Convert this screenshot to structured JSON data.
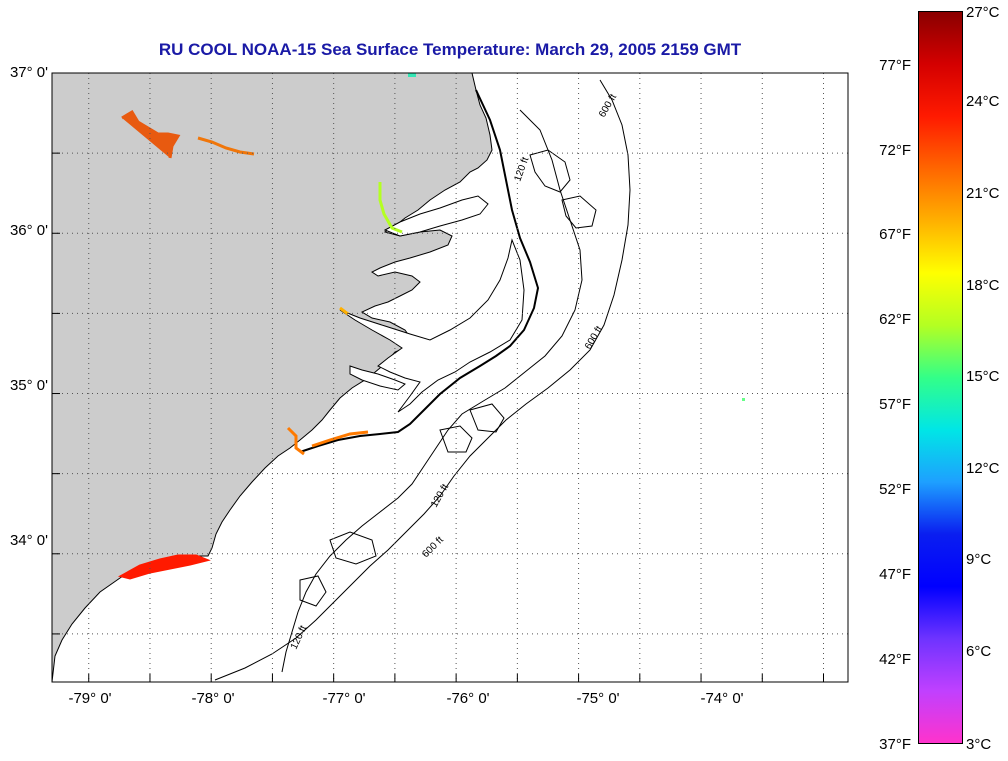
{
  "title": "RU COOL  NOAA-15  Sea Surface Temperature:  March 29, 2005 2159 GMT",
  "colors": {
    "title": "#1a1aa6",
    "land": "#cccccc",
    "water": "#ffffff",
    "coastline": "#000000"
  },
  "map": {
    "lon_range": [
      -79.3,
      -72.8
    ],
    "lat_range": [
      33.2,
      37.0
    ],
    "grid": "dotted",
    "lat_ticks": [
      {
        "value": 37,
        "label": "37° 0'"
      },
      {
        "value": 36,
        "label": "36° 0'"
      },
      {
        "value": 35,
        "label": "35° 0'"
      },
      {
        "value": 34,
        "label": "34° 0'"
      }
    ],
    "lon_ticks": [
      {
        "value": -79,
        "label": "-79° 0'"
      },
      {
        "value": -78,
        "label": "-78° 0'"
      },
      {
        "value": -77,
        "label": "-77° 0'"
      },
      {
        "value": -76,
        "label": "-76° 0'"
      },
      {
        "value": -75,
        "label": "-75° 0'"
      },
      {
        "value": -74,
        "label": "-74° 0'"
      }
    ],
    "isobath_labels": [
      "120 ft",
      "600 ft"
    ]
  },
  "colorbar": {
    "celsius_labels": [
      "27°C",
      "24°C",
      "21°C",
      "18°C",
      "15°C",
      "12°C",
      "9°C",
      "6°C",
      "3°C"
    ],
    "fahrenheit_labels": [
      "77°F",
      "72°F",
      "67°F",
      "62°F",
      "57°F",
      "52°F",
      "47°F",
      "42°F",
      "37°F"
    ],
    "range_c": [
      3,
      27
    ],
    "stops": [
      "#ff33cc",
      "#c040ff",
      "#6e33ff",
      "#0000ff",
      "#0a1ef0",
      "#1ea0ff",
      "#00e6e6",
      "#33ff88",
      "#b4ff22",
      "#ffff00",
      "#ffb000",
      "#ff6600",
      "#ff1a00",
      "#d40000",
      "#8a0000"
    ]
  }
}
